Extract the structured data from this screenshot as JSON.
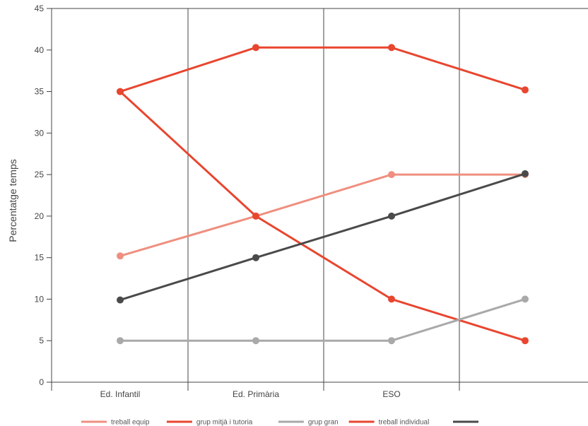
{
  "chart_data": {
    "type": "line",
    "title": "",
    "xlabel": "",
    "ylabel": "Percentatge temps",
    "ylim": [
      0,
      45
    ],
    "yticks": [
      0,
      5,
      10,
      15,
      20,
      25,
      30,
      35,
      40,
      45
    ],
    "categories": [
      "Ed. Infantil",
      "Ed. Primària",
      "ESO",
      ""
    ],
    "grid": "vertical lines between categories",
    "legend_position": "bottom",
    "series": [
      {
        "name": "treball equip",
        "color": "#ef8f7f",
        "values": [
          15.2,
          20,
          25,
          25
        ]
      },
      {
        "name": "grup mitjà i tutoria",
        "color": "#e8462f",
        "values": [
          35,
          20,
          10,
          5
        ]
      },
      {
        "name": "grup gran",
        "color": "#a9a9a9",
        "values": [
          5,
          5,
          5,
          10
        ]
      },
      {
        "name": "treball individual",
        "color": "#e8462f",
        "values": [
          35,
          40.3,
          40.3,
          35.2
        ]
      },
      {
        "name": "",
        "color": "#4a4a4a",
        "values": [
          9.9,
          15,
          20,
          25.1
        ]
      }
    ]
  }
}
